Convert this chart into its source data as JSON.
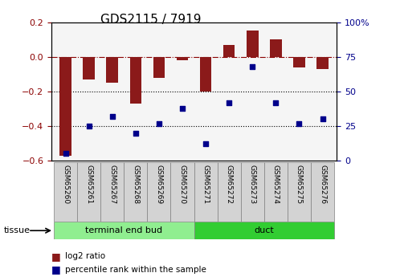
{
  "title": "GDS2115 / 7919",
  "samples": [
    "GSM65260",
    "GSM65261",
    "GSM65267",
    "GSM65268",
    "GSM65269",
    "GSM65270",
    "GSM65271",
    "GSM65272",
    "GSM65273",
    "GSM65274",
    "GSM65275",
    "GSM65276"
  ],
  "log2_ratio": [
    -0.57,
    -0.13,
    -0.15,
    -0.27,
    -0.12,
    -0.02,
    -0.2,
    0.07,
    0.15,
    0.1,
    -0.06,
    -0.07
  ],
  "percentile_rank": [
    5,
    25,
    32,
    20,
    27,
    38,
    12,
    42,
    68,
    42,
    27,
    30
  ],
  "groups": [
    {
      "label": "terminal end bud",
      "start": 0,
      "end": 5,
      "color": "#90EE90"
    },
    {
      "label": "duct",
      "start": 6,
      "end": 11,
      "color": "#32CD32"
    }
  ],
  "bar_color": "#8B1A1A",
  "scatter_color": "#00008B",
  "ylim_left": [
    -0.6,
    0.2
  ],
  "ylim_right": [
    0,
    100
  ],
  "yticks_left": [
    -0.6,
    -0.4,
    -0.2,
    0.0,
    0.2
  ],
  "yticks_right": [
    0,
    25,
    50,
    75,
    100
  ],
  "ytick_labels_right": [
    "0",
    "25",
    "50",
    "75",
    "100%"
  ],
  "hline_zero_color": "#8B0000",
  "hline_dotted_color": "black",
  "background_color": "#ffffff"
}
